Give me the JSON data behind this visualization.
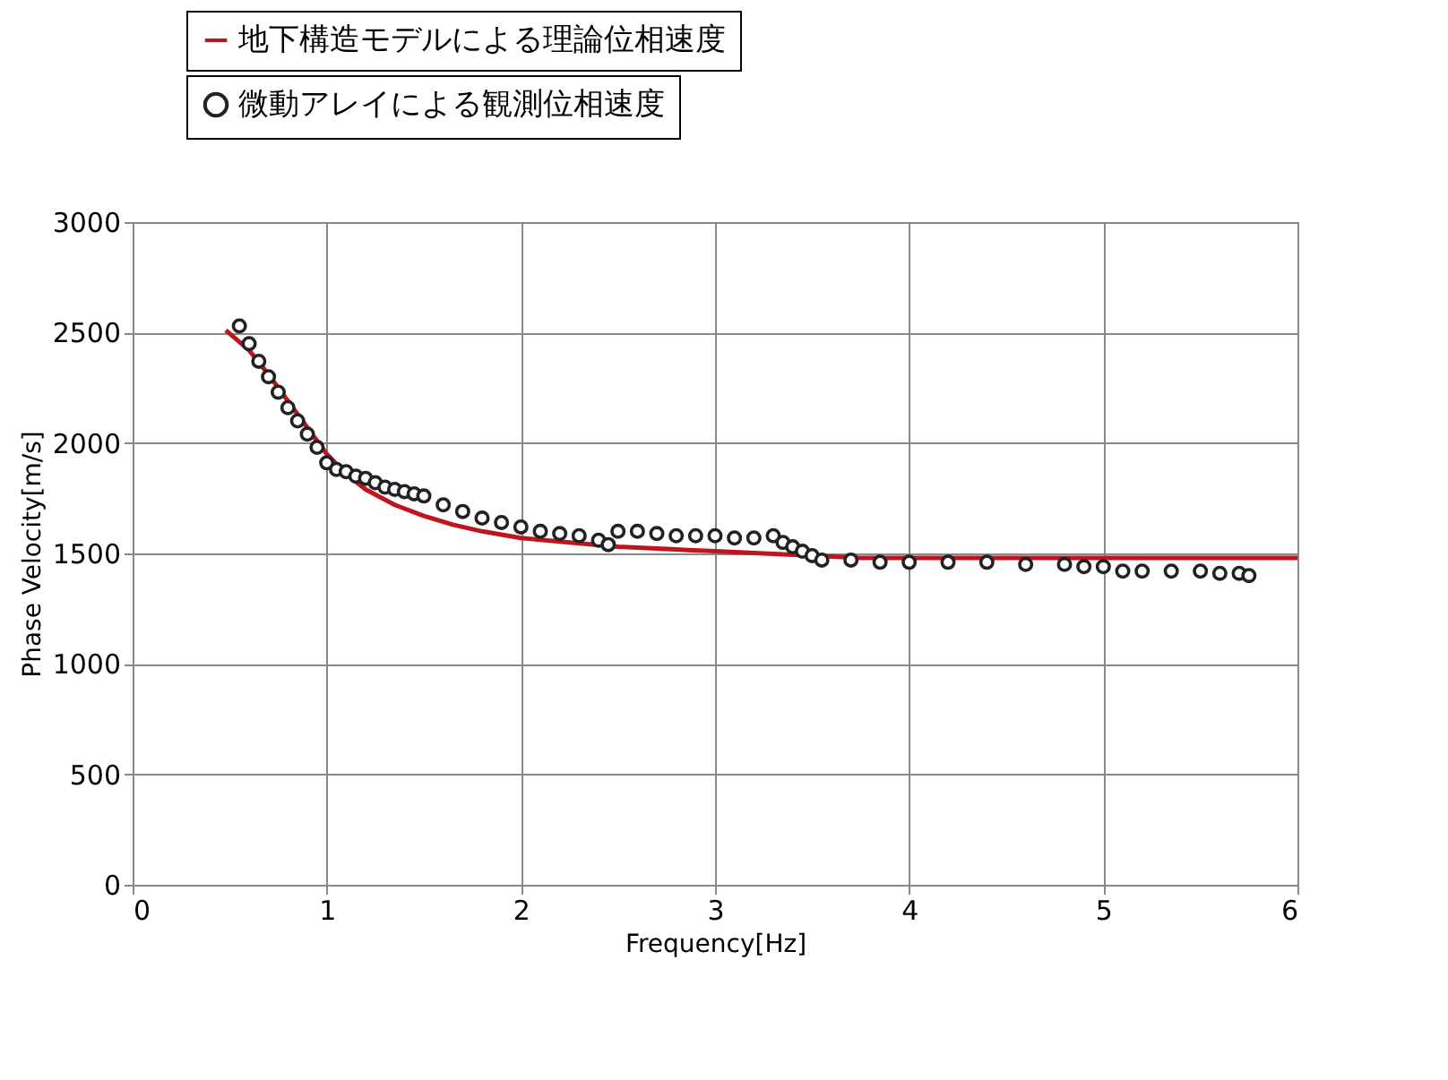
{
  "chart_data": {
    "type": "line",
    "xlabel": "Frequency[Hz]",
    "ylabel": "Phase Velocity[m/s]",
    "xlim": [
      0,
      6
    ],
    "xticks": [
      0,
      1,
      2,
      3,
      4,
      5,
      6
    ],
    "ylim": [
      0,
      3000
    ],
    "yticks": [
      0,
      500,
      1000,
      1500,
      2000,
      2500,
      3000
    ],
    "grid": true,
    "legend": "top",
    "series": [
      {
        "name": "地下構造モデルによる理論位相速度",
        "type": "line",
        "color": "#c0141e",
        "marker": "none",
        "line_style": "solid",
        "x": [
          0.48,
          0.6,
          0.7,
          0.8,
          0.9,
          1.0,
          1.1,
          1.2,
          1.35,
          1.5,
          1.65,
          1.8,
          2.0,
          2.25,
          2.5,
          2.75,
          3.0,
          3.25,
          3.5,
          3.75,
          4.0,
          4.5,
          5.0,
          5.5,
          6.0
        ],
        "values": [
          2510,
          2420,
          2310,
          2190,
          2070,
          1950,
          1860,
          1790,
          1720,
          1670,
          1630,
          1600,
          1570,
          1550,
          1530,
          1520,
          1510,
          1500,
          1490,
          1480,
          1480,
          1480,
          1480,
          1480,
          1480
        ]
      },
      {
        "name": "微動アレイによる観測位相速度",
        "type": "scatter",
        "color": "#222222",
        "marker": "circle",
        "x": [
          0.55,
          0.6,
          0.65,
          0.7,
          0.75,
          0.8,
          0.85,
          0.9,
          0.95,
          1.0,
          1.05,
          1.1,
          1.15,
          1.2,
          1.25,
          1.3,
          1.35,
          1.4,
          1.45,
          1.5,
          1.6,
          1.7,
          1.8,
          1.9,
          2.0,
          2.1,
          2.2,
          2.3,
          2.4,
          2.45,
          2.5,
          2.6,
          2.7,
          2.8,
          2.9,
          3.0,
          3.1,
          3.2,
          3.3,
          3.35,
          3.4,
          3.45,
          3.5,
          3.55,
          3.7,
          3.85,
          4.0,
          4.2,
          4.4,
          4.6,
          4.8,
          4.9,
          5.0,
          5.1,
          5.2,
          5.35,
          5.5,
          5.6,
          5.7,
          5.75
        ],
        "values": [
          2530,
          2450,
          2370,
          2300,
          2230,
          2160,
          2100,
          2040,
          1980,
          1910,
          1880,
          1870,
          1850,
          1840,
          1820,
          1800,
          1790,
          1780,
          1770,
          1760,
          1720,
          1690,
          1660,
          1640,
          1620,
          1600,
          1590,
          1580,
          1560,
          1540,
          1600,
          1600,
          1590,
          1580,
          1580,
          1580,
          1570,
          1570,
          1580,
          1550,
          1530,
          1510,
          1490,
          1470,
          1470,
          1460,
          1460,
          1460,
          1460,
          1450,
          1450,
          1440,
          1440,
          1420,
          1420,
          1420,
          1420,
          1410,
          1410,
          1400
        ]
      }
    ]
  }
}
